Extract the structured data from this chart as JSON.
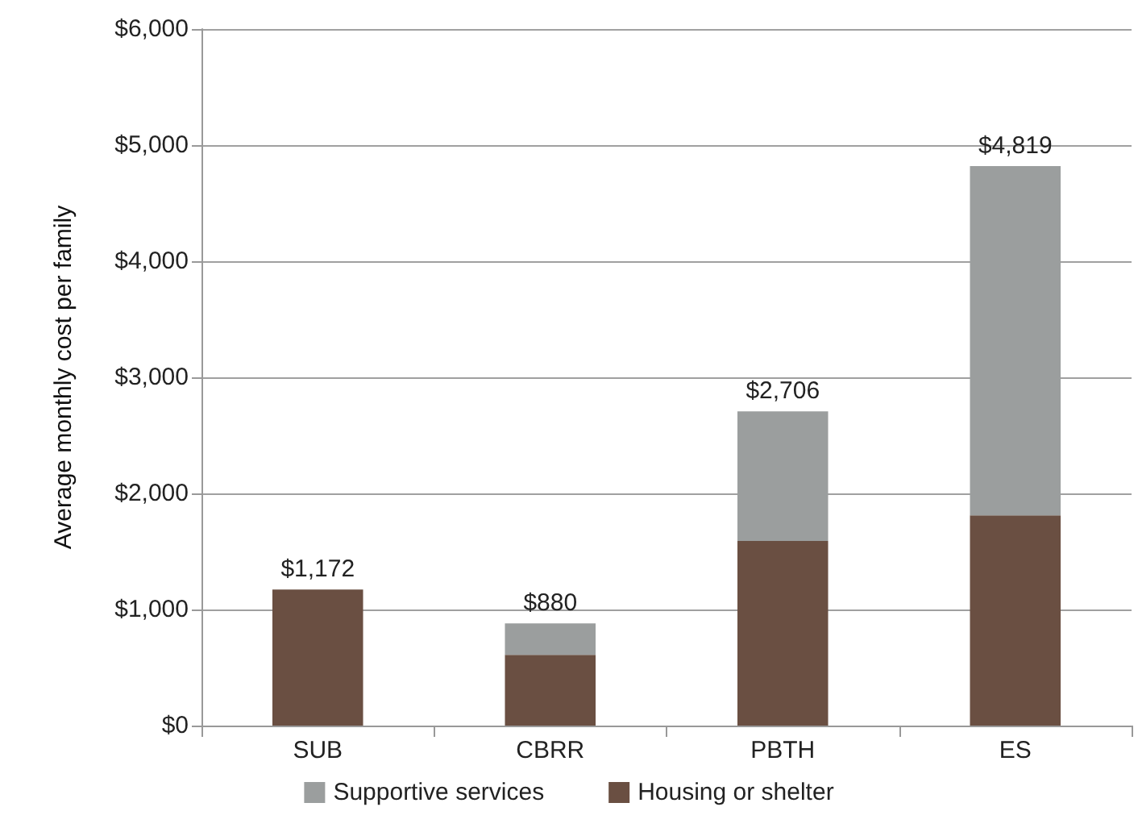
{
  "chart_data": {
    "type": "bar",
    "stacked": true,
    "ylabel": "Average monthly cost per family",
    "categories": [
      "SUB",
      "CBRR",
      "PBTH",
      "ES"
    ],
    "series": [
      {
        "name": "Housing or shelter",
        "color": "#6a4f42",
        "values": [
          1172,
          610,
          1590,
          1810
        ]
      },
      {
        "name": "Supportive services",
        "color": "#9b9e9e",
        "values": [
          0,
          270,
          1116,
          3009
        ]
      }
    ],
    "totals": [
      "$1,172",
      "$880",
      "$2,706",
      "$4,819"
    ],
    "ylim": [
      0,
      6000
    ],
    "yticks": [
      {
        "value": 0,
        "label": "$0"
      },
      {
        "value": 1000,
        "label": "$1,000"
      },
      {
        "value": 2000,
        "label": "$2,000"
      },
      {
        "value": 3000,
        "label": "$3,000"
      },
      {
        "value": 4000,
        "label": "$4,000"
      },
      {
        "value": 5000,
        "label": "$5,000"
      },
      {
        "value": 6000,
        "label": "$6,000"
      }
    ],
    "grid": "y",
    "legend": "bottom"
  }
}
